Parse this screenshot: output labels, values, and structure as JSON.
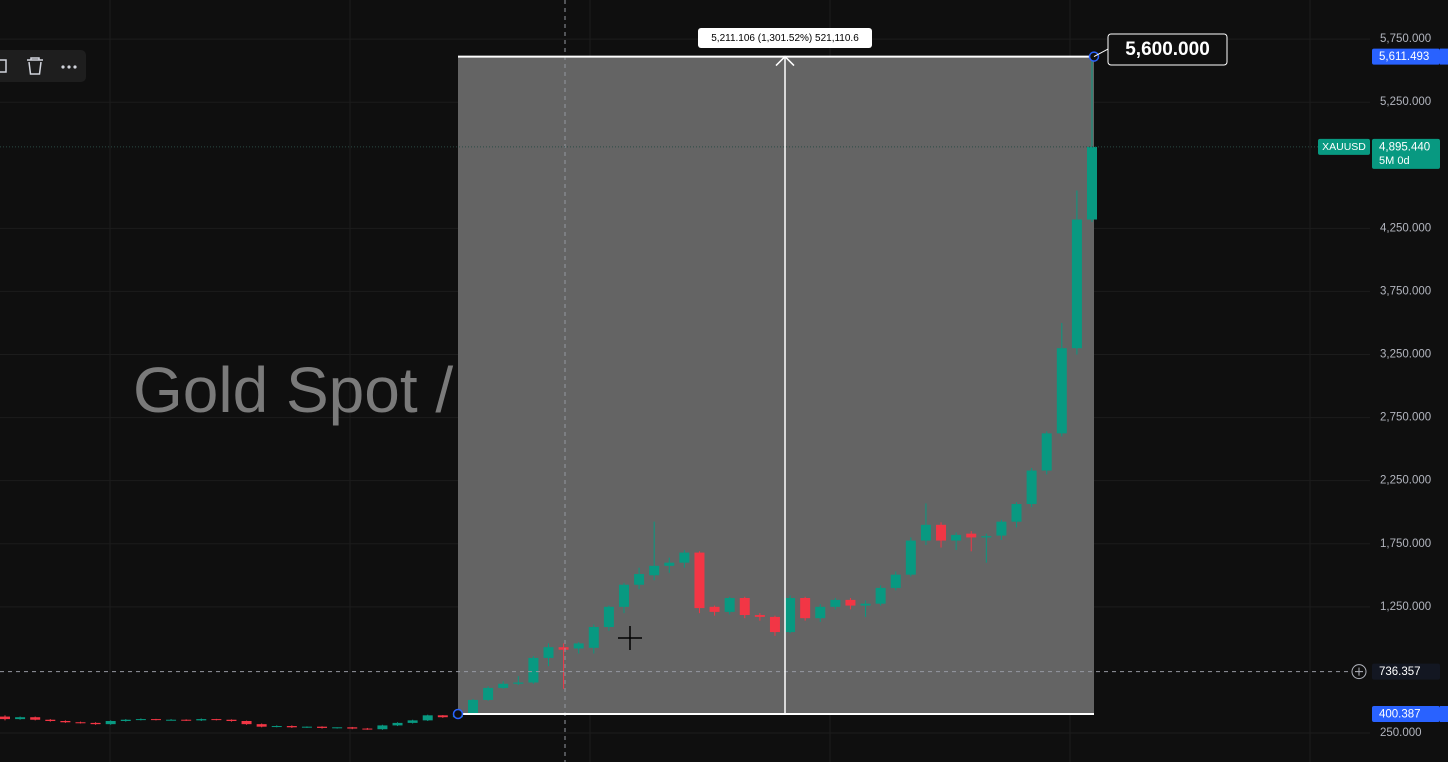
{
  "chart_data": {
    "type": "candlestick",
    "title": "Gold Spot / U.S. Dollar",
    "up_color": "#089981",
    "down_color": "#f23645",
    "open": [
      380,
      360,
      375,
      355,
      345,
      335,
      330,
      320,
      345,
      355,
      360,
      355,
      355,
      350,
      360,
      355,
      345,
      320,
      300,
      305,
      295,
      300,
      290,
      295,
      285,
      280,
      310,
      330,
      350,
      390,
      375,
      400,
      512,
      607,
      640,
      650,
      845,
      930,
      920,
      925,
      1090,
      1250,
      1425,
      1500,
      1575,
      1600,
      1680,
      1250,
      1210,
      1320,
      1185,
      1170,
      1050,
      1320,
      1160,
      1250,
      1305,
      1260,
      1275,
      1400,
      1505,
      1775,
      1900,
      1775,
      1830,
      1800,
      1815,
      1925,
      2065,
      2330,
      2625,
      3300,
      4320
    ],
    "high": [
      390,
      380,
      380,
      360,
      350,
      340,
      335,
      350,
      360,
      365,
      362,
      360,
      358,
      365,
      362,
      358,
      348,
      325,
      310,
      310,
      302,
      303,
      295,
      298,
      290,
      315,
      335,
      355,
      395,
      392,
      405,
      520,
      620,
      660,
      700,
      860,
      960,
      960,
      970,
      1110,
      1260,
      1440,
      1560,
      1925,
      1640,
      1700,
      1690,
      1260,
      1330,
      1330,
      1200,
      1180,
      1340,
      1330,
      1270,
      1320,
      1320,
      1300,
      1420,
      1530,
      1800,
      2070,
      1920,
      1840,
      1850,
      1830,
      1940,
      2080,
      2350,
      2640,
      3500,
      4550,
      5611.493
    ],
    "low": [
      350,
      355,
      350,
      340,
      330,
      325,
      315,
      315,
      340,
      350,
      350,
      350,
      345,
      345,
      350,
      340,
      315,
      295,
      295,
      290,
      290,
      285,
      285,
      280,
      275,
      275,
      305,
      325,
      345,
      370,
      370,
      395,
      505,
      600,
      630,
      640,
      780,
      600,
      880,
      880,
      1060,
      1200,
      1390,
      1460,
      1520,
      1560,
      1200,
      1180,
      1190,
      1160,
      1140,
      1020,
      1040,
      1140,
      1130,
      1230,
      1230,
      1170,
      1260,
      1380,
      1490,
      1740,
      1720,
      1700,
      1690,
      1600,
      1780,
      1880,
      2040,
      2300,
      2600,
      3250,
      4300
    ],
    "close": [
      360,
      375,
      355,
      345,
      335,
      330,
      320,
      345,
      355,
      360,
      355,
      355,
      350,
      360,
      355,
      345,
      320,
      300,
      305,
      295,
      300,
      290,
      295,
      285,
      280,
      310,
      330,
      350,
      390,
      375,
      400,
      512,
      607,
      640,
      650,
      845,
      930,
      910,
      960,
      1090,
      1250,
      1425,
      1510,
      1575,
      1600,
      1680,
      1240,
      1210,
      1320,
      1185,
      1170,
      1050,
      1320,
      1160,
      1250,
      1305,
      1260,
      1275,
      1400,
      1505,
      1775,
      1900,
      1775,
      1820,
      1800,
      1810,
      1925,
      2065,
      2330,
      2625,
      3300,
      4320,
      4895.44
    ],
    "ylim": [
      20,
      6060
    ],
    "yticks": [
      {
        "value": 250,
        "label": "250.000"
      },
      {
        "value": 1250,
        "label": "1,250.000"
      },
      {
        "value": 1750,
        "label": "1,750.000"
      },
      {
        "value": 2250,
        "label": "2,250.000"
      },
      {
        "value": 2750,
        "label": "2,750.000"
      },
      {
        "value": 3250,
        "label": "3,250.000"
      },
      {
        "value": 3750,
        "label": "3,750.000"
      },
      {
        "value": 4250,
        "label": "4,250.000"
      },
      {
        "value": 5250,
        "label": "5,250.000"
      },
      {
        "value": 5750,
        "label": "5,750.000"
      }
    ],
    "grid": true,
    "measure": {
      "from": 400.387,
      "to": 5611.493,
      "label": "5,211.106 (1,301.52%) 521,110.6"
    },
    "callout": {
      "value": 5600,
      "label": "5,600.000"
    },
    "price_labels": [
      {
        "value": 5611.493,
        "label": "5,611.493",
        "color": "#2962ff"
      },
      {
        "value": 4895.44,
        "label": "4,895.440",
        "color": "#089981",
        "symbol": "XAUUSD",
        "countdown": "5M 0d"
      },
      {
        "value": 736.357,
        "label": "736.357",
        "color": "#131722"
      },
      {
        "value": 400.387,
        "label": "400.387",
        "color": "#2962ff"
      }
    ]
  }
}
